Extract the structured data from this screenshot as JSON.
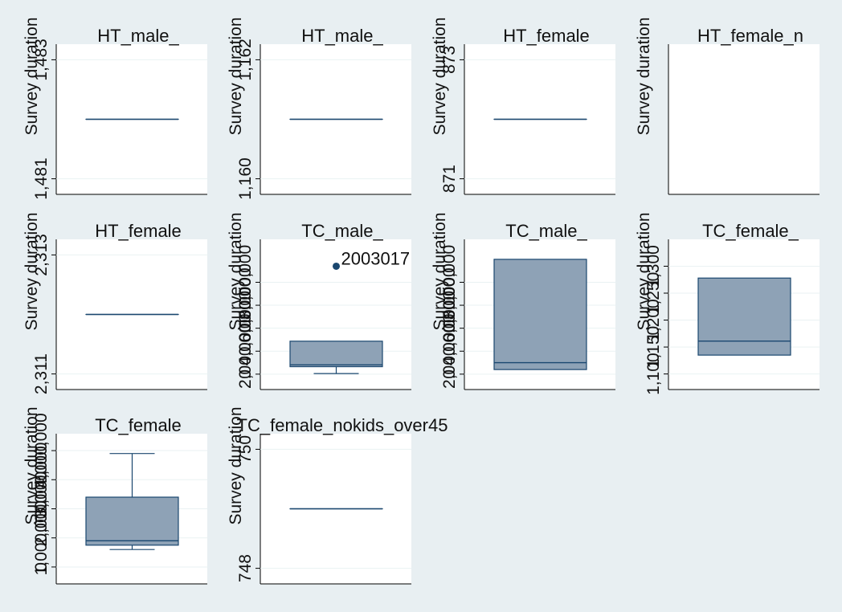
{
  "chart_data": [
    {
      "type": "box",
      "title": "HT_male_",
      "ylabel": "Survey duration",
      "yticks": [
        "1,481",
        "1,483"
      ],
      "box": {
        "min": 1482,
        "q1": 1482,
        "median": 1482,
        "q3": 1482,
        "max": 1482
      },
      "outliers": [],
      "ylim": [
        1480.9,
        1483.1
      ]
    },
    {
      "type": "box",
      "title": "HT_male_",
      "ylabel": "Survey duration",
      "yticks": [
        "1,160",
        "1,162"
      ],
      "box": {
        "min": 1161,
        "q1": 1161,
        "median": 1161,
        "q3": 1161,
        "max": 1161
      },
      "outliers": [],
      "ylim": [
        1159.9,
        1162.1
      ]
    },
    {
      "type": "box",
      "title": "HT_female",
      "ylabel": "Survey duration",
      "yticks": [
        "871",
        "873"
      ],
      "box": {
        "min": 872,
        "q1": 872,
        "median": 872,
        "q3": 872,
        "max": 872
      },
      "outliers": [],
      "ylim": [
        870.9,
        873.1
      ]
    },
    {
      "type": "box",
      "title": "HT_female_n",
      "ylabel": "Survey duration",
      "yticks": [],
      "box": null,
      "outliers": [],
      "ylim": [
        0,
        1
      ]
    },
    {
      "type": "box",
      "title": "HT_female",
      "ylabel": "Survey duration",
      "yticks": [
        "2,311",
        "2,313"
      ],
      "box": {
        "min": 2312,
        "q1": 2312,
        "median": 2312,
        "q3": 2312,
        "max": 2312
      },
      "outliers": [],
      "ylim": [
        2310.9,
        2313.1
      ]
    },
    {
      "type": "box",
      "title": "TC_male_",
      "ylabel": "Survey duration",
      "yticks": [
        "0",
        "2,000,000",
        "4,000,000",
        "6,000,000",
        "8,000,000"
      ],
      "box": {
        "min": 50000,
        "q1": 650000,
        "median": 810000,
        "q3": 2870000,
        "max": 2870000
      },
      "outliers": [
        {
          "value": 9400000,
          "label": "2003017"
        }
      ],
      "ylim": [
        -500000,
        10900000
      ]
    },
    {
      "type": "box",
      "title": "TC_male_",
      "ylabel": "Survey duration",
      "yticks": [
        "0",
        "2,000,000",
        "4,000,000",
        "6,000,000",
        "8,000,000"
      ],
      "box": {
        "min": 400000,
        "q1": 400000,
        "median": 1000000,
        "q3": 10000000,
        "max": 10000000
      },
      "outliers": [],
      "ylim": [
        -500000,
        10900000
      ]
    },
    {
      "type": "box",
      "title": "TC_female_",
      "ylabel": "Survey duration",
      "yticks": [
        "1,100",
        "1,150",
        "1,200",
        "1,250",
        "1,300"
      ],
      "box": {
        "min": 1135,
        "q1": 1135,
        "median": 1161,
        "q3": 1278,
        "max": 1278
      },
      "outliers": [],
      "ylim": [
        1089,
        1332
      ]
    },
    {
      "type": "box",
      "title": "TC_female",
      "ylabel": "Survey duration",
      "yticks": [
        "0",
        "1,000,000",
        "2,000,000",
        "3,000,000",
        "4,000,000"
      ],
      "box": {
        "min": 600000,
        "q1": 750000,
        "median": 900000,
        "q3": 2400000,
        "max": 3900000
      },
      "outliers": [],
      "ylim": [
        -250000,
        4250000
      ]
    },
    {
      "type": "box",
      "title": "TC_female_nokids_over45",
      "ylabel": "Survey duration",
      "yticks": [
        "748",
        "750"
      ],
      "box": {
        "min": 749,
        "q1": 749,
        "median": 749,
        "q3": 749,
        "max": 749
      },
      "outliers": [],
      "ylim": [
        747.9,
        750.1
      ]
    }
  ],
  "style": {
    "plot_bg": "#ffffff",
    "outer_bg": "#e8eff2",
    "box_fill": "#8ea2b6",
    "box_stroke": "#1a476f",
    "grid": "#eaf2f3",
    "axis": "#000000"
  }
}
